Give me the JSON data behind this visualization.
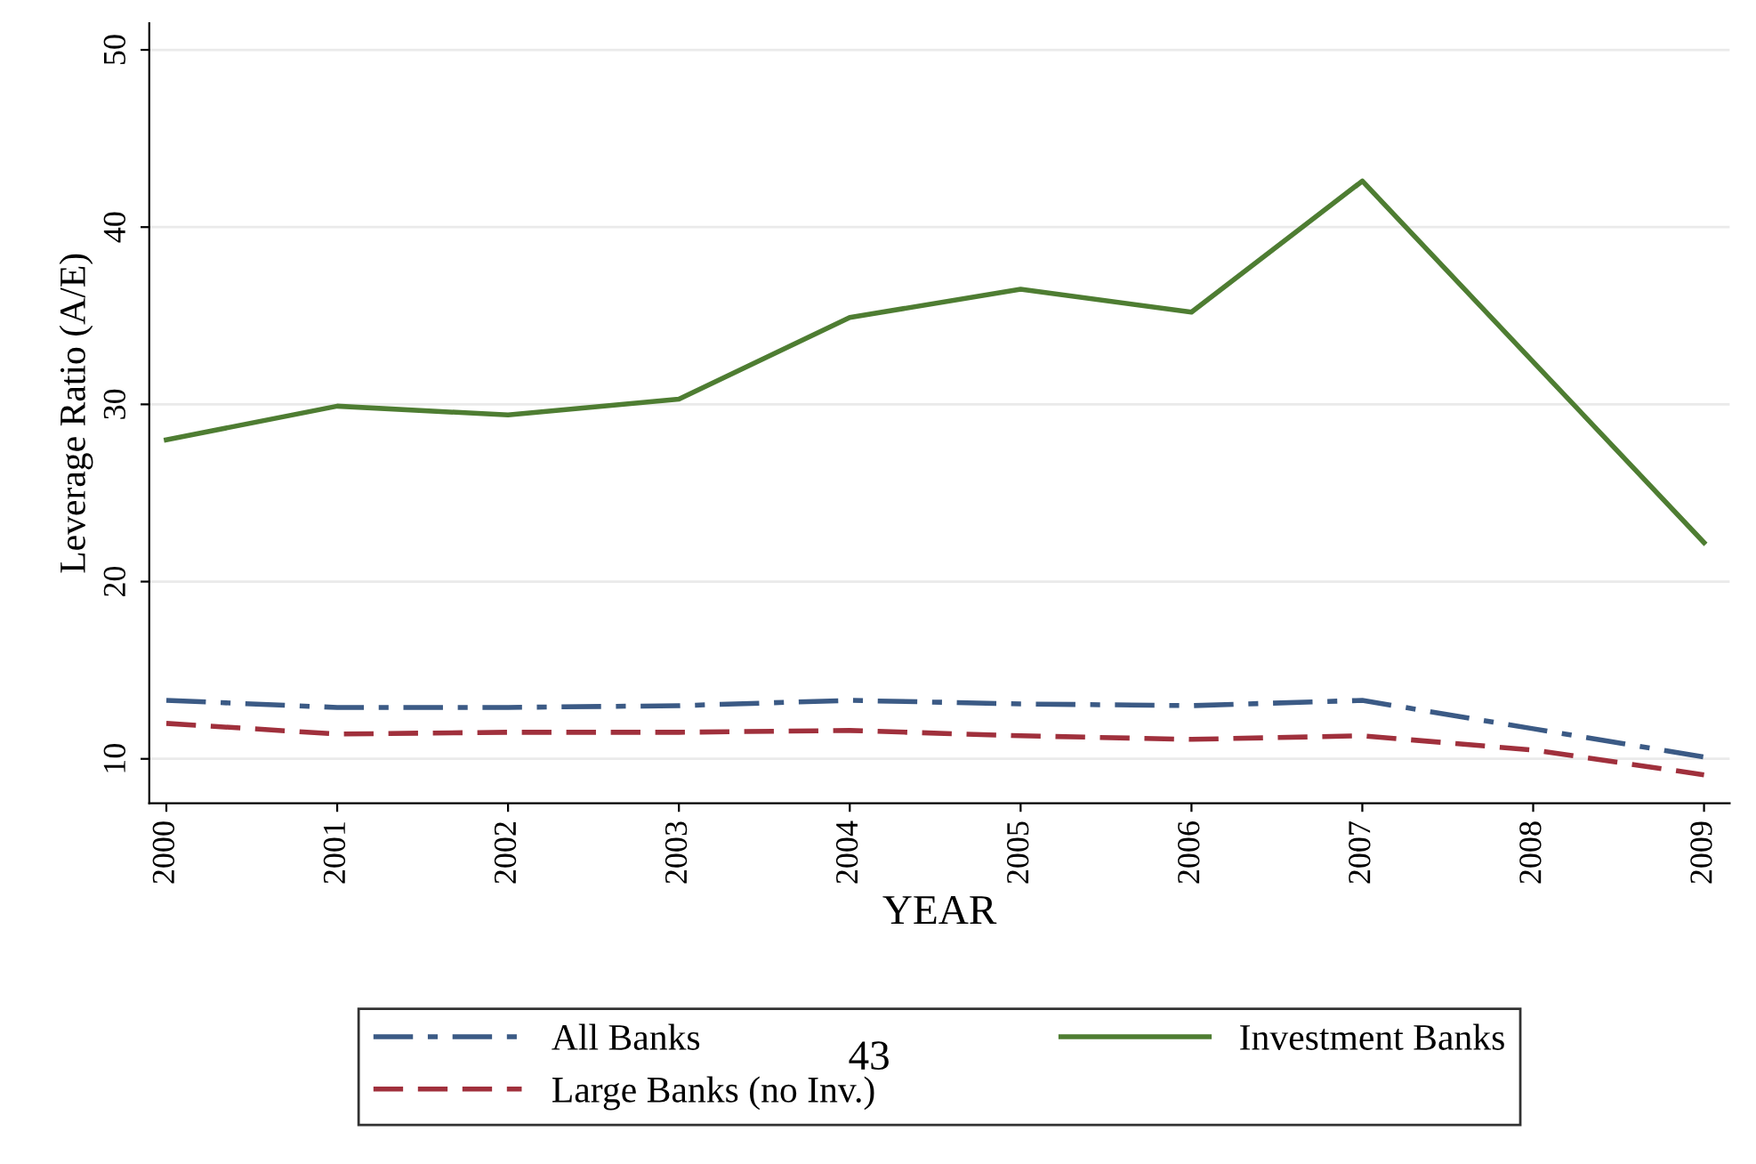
{
  "chart_data": {
    "type": "line",
    "xlabel": "YEAR",
    "ylabel": "Leverage Ratio (A/E)",
    "x": [
      2000,
      2001,
      2002,
      2003,
      2004,
      2005,
      2006,
      2007,
      2008,
      2009
    ],
    "xlim": [
      1999.9,
      2009.15
    ],
    "xticks": [
      2000,
      2001,
      2002,
      2003,
      2004,
      2005,
      2006,
      2007,
      2008,
      2009
    ],
    "ylim": [
      7.5,
      51.5
    ],
    "yticks": [
      10,
      20,
      30,
      40,
      50
    ],
    "grid": "y",
    "legend": "bottom",
    "annotations": [
      "43"
    ],
    "series": [
      {
        "name": "All Banks",
        "color": "#3b5a85",
        "line_style": "dashdot",
        "values": [
          13.3,
          12.9,
          12.9,
          13.0,
          13.3,
          13.1,
          13.0,
          13.3,
          11.7,
          10.1
        ]
      },
      {
        "name": "Large Banks (no Inv.)",
        "color": "#a0303c",
        "line_style": "dashed",
        "values": [
          12.0,
          11.4,
          11.5,
          11.5,
          11.6,
          11.3,
          11.1,
          11.3,
          10.5,
          9.1
        ]
      },
      {
        "name": "Investment Banks",
        "color": "#4e7d32",
        "line_style": "solid",
        "values": [
          28.0,
          29.9,
          29.4,
          30.3,
          34.9,
          36.5,
          35.2,
          42.6,
          32.4,
          22.2
        ]
      }
    ]
  }
}
